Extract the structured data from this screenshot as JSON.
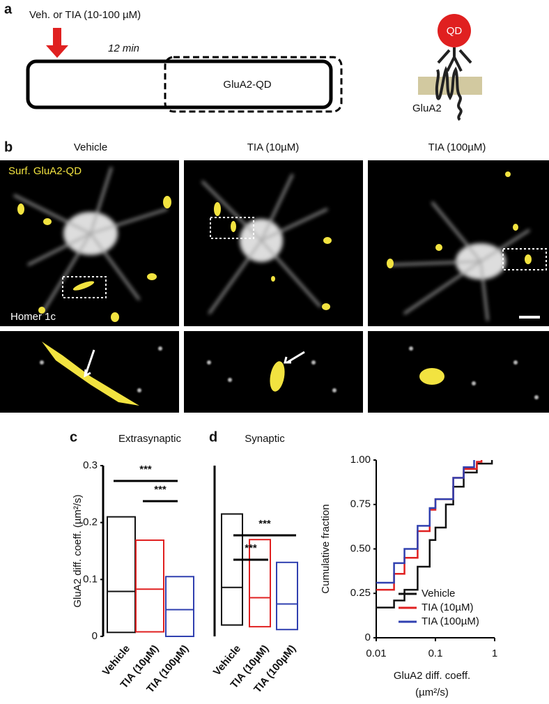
{
  "panel_a": {
    "label": "a",
    "treatment": "Veh. or TIA (10-100 µM)",
    "duration": "12 min",
    "probe": "GluA2-QD",
    "dot": "QD",
    "receptor": "GluA2"
  },
  "panel_b": {
    "label": "b",
    "titles": [
      "Vehicle",
      "TIA (10µM)",
      "TIA (100µM)"
    ],
    "overlay": "Surf. GluA2-QD",
    "stain": "Homer 1c"
  },
  "chart_data": [
    {
      "type": "box",
      "panel_label": "c",
      "title": "Extrasynaptic",
      "ylabel": "GluA2 diff. coeff. (µm²/s)",
      "categories": [
        "Vehicle",
        "TIA (10µM)",
        "TIA (100µM)"
      ],
      "colors": [
        "#111111",
        "#e02020",
        "#3040b0"
      ],
      "low": [
        0.007,
        0.008,
        0.0
      ],
      "median": [
        0.079,
        0.083,
        0.047
      ],
      "high": [
        0.21,
        0.169,
        0.105
      ],
      "ylim": [
        0,
        0.3
      ],
      "yticks": [
        0,
        0.1,
        0.2,
        0.3
      ],
      "annotations": [
        "***",
        "***"
      ]
    },
    {
      "type": "box",
      "panel_label": "d",
      "title": "Synaptic",
      "categories": [
        "Vehicle",
        "TIA (10µM)",
        "TIA (100µM)"
      ],
      "colors": [
        "#111111",
        "#e02020",
        "#3040b0"
      ],
      "low": [
        0.02,
        0.017,
        0.012
      ],
      "median": [
        0.086,
        0.068,
        0.057
      ],
      "high": [
        0.215,
        0.17,
        0.13
      ],
      "ylim": [
        0,
        0.3
      ],
      "annotations": [
        "***",
        "***"
      ]
    },
    {
      "type": "line",
      "ylabel": "Cumulative fraction",
      "xlabel": [
        "GluA2 diff. coeff.",
        "(µm²/s)"
      ],
      "log_x": true,
      "xlim": [
        0.01,
        1
      ],
      "xticks": [
        0.01,
        0.1,
        1
      ],
      "ylim": [
        0,
        1
      ],
      "yticks": [
        0,
        0.25,
        {
          "value": 0.5,
          "label": "0.50"
        },
        0.75,
        {
          "value": 1,
          "label": "1.00"
        }
      ],
      "series": [
        {
          "name": "Vehicle",
          "color": "#111111",
          "x": [
            0.01,
            0.02,
            0.03,
            0.05,
            0.08,
            0.1,
            0.15,
            0.2,
            0.3,
            0.5,
            0.9
          ],
          "values": [
            0.17,
            0.21,
            0.27,
            0.4,
            0.55,
            0.62,
            0.75,
            0.85,
            0.93,
            0.98,
            1.0
          ]
        },
        {
          "name": "TIA (10µM)",
          "color": "#e02020",
          "x": [
            0.01,
            0.02,
            0.03,
            0.05,
            0.08,
            0.1,
            0.2,
            0.3,
            0.5,
            0.6
          ],
          "values": [
            0.27,
            0.36,
            0.45,
            0.6,
            0.72,
            0.78,
            0.9,
            0.95,
            0.99,
            1.0
          ]
        },
        {
          "name": "TIA (100µM)",
          "color": "#3040b0",
          "x": [
            0.01,
            0.02,
            0.03,
            0.05,
            0.08,
            0.1,
            0.2,
            0.3,
            0.45
          ],
          "values": [
            0.31,
            0.42,
            0.5,
            0.63,
            0.73,
            0.78,
            0.9,
            0.96,
            1.0
          ]
        }
      ]
    }
  ]
}
